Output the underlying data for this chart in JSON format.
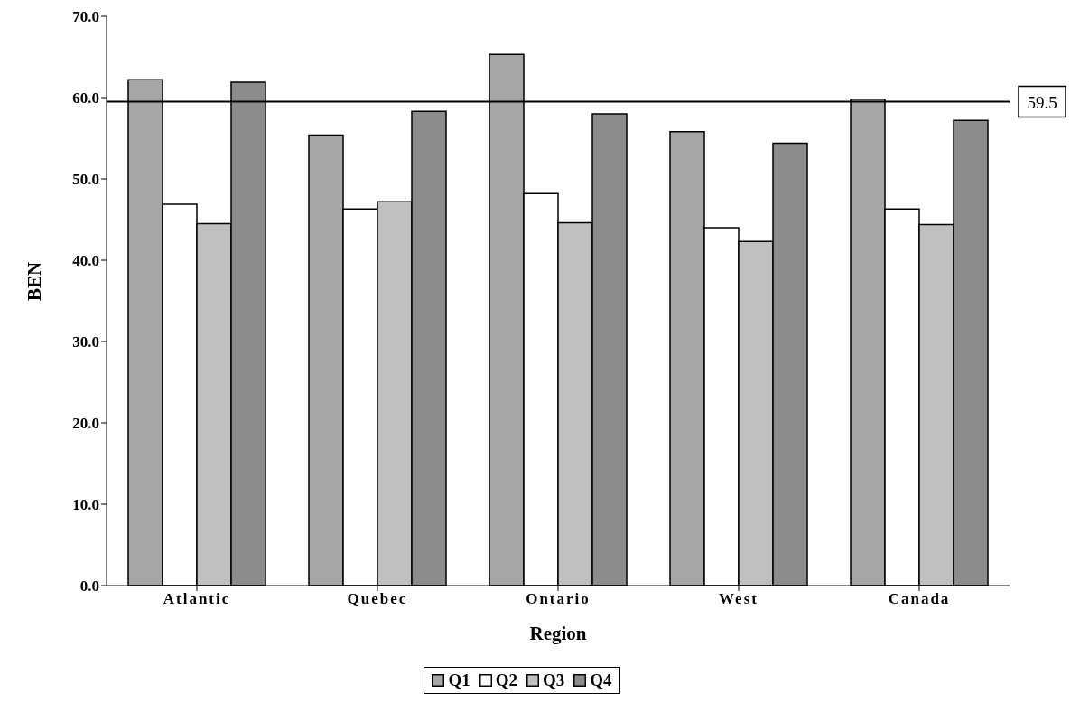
{
  "chart_data": {
    "type": "bar",
    "xlabel": "Region",
    "ylabel": "BEN",
    "categories": [
      "Atlantic",
      "Quebec",
      "Ontario",
      "West",
      "Canada"
    ],
    "series": [
      {
        "name": "Q1",
        "color": "#a6a6a6",
        "values": [
          62.2,
          55.4,
          65.3,
          55.8,
          59.8
        ]
      },
      {
        "name": "Q2",
        "color": "#ffffff",
        "values": [
          46.9,
          46.3,
          48.2,
          44.0,
          46.3
        ]
      },
      {
        "name": "Q3",
        "color": "#c0c0c0",
        "values": [
          44.5,
          47.2,
          44.6,
          42.3,
          44.4
        ]
      },
      {
        "name": "Q4",
        "color": "#8c8c8c",
        "values": [
          61.9,
          58.3,
          58.0,
          54.4,
          57.2
        ]
      }
    ],
    "ylim": [
      0,
      70
    ],
    "yticks": [
      {
        "value": 0,
        "label": "0.0"
      },
      {
        "value": 10,
        "label": "10.0"
      },
      {
        "value": 20,
        "label": "20.0"
      },
      {
        "value": 30,
        "label": "30.0"
      },
      {
        "value": 40,
        "label": "40.0"
      },
      {
        "value": 50,
        "label": "50.0"
      },
      {
        "value": 60,
        "label": "60.0"
      },
      {
        "value": 70,
        "label": "70.0"
      }
    ],
    "ref_lines": [
      {
        "axis": "y",
        "value": 59.5,
        "label": "59.5",
        "color": "#000000"
      }
    ],
    "grid": false,
    "legend": "bottom"
  }
}
